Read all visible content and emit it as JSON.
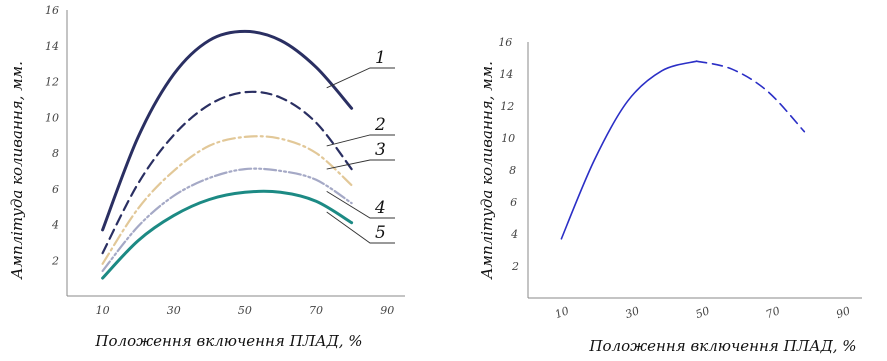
{
  "chart_data": [
    {
      "type": "line",
      "xlabel": "Положення включення ПЛАД, %",
      "ylabel": "Амплітуда коливання, мм.",
      "xlim": [
        0,
        95
      ],
      "ylim": [
        0,
        16
      ],
      "xticks": [
        "10",
        "30",
        "50",
        "70",
        "90"
      ],
      "yticks": [
        "2",
        "4",
        "6",
        "8",
        "10",
        "12",
        "14",
        "16"
      ],
      "grid": false,
      "series": [
        {
          "name": "1",
          "color": "#2a2f62",
          "dash": "solid",
          "x": [
            10,
            20,
            30,
            40,
            50,
            60,
            70,
            80
          ],
          "y": [
            3.7,
            8.9,
            12.4,
            14.3,
            14.8,
            14.3,
            12.8,
            10.5
          ]
        },
        {
          "name": "2",
          "color": "#2a2f62",
          "dash": "dashed",
          "x": [
            10,
            20,
            30,
            40,
            50,
            60,
            70,
            80
          ],
          "y": [
            2.4,
            6.3,
            9.0,
            10.7,
            11.4,
            11.1,
            9.7,
            7.1
          ]
        },
        {
          "name": "3",
          "color": "#e2c898",
          "dash": "dashdot",
          "x": [
            10,
            20,
            30,
            40,
            50,
            60,
            70,
            80
          ],
          "y": [
            1.8,
            4.9,
            7.0,
            8.4,
            8.9,
            8.8,
            8.0,
            6.2
          ]
        },
        {
          "name": "4",
          "color": "#a5a9c6",
          "dash": "dashdotdot",
          "x": [
            10,
            20,
            30,
            40,
            50,
            60,
            70,
            80
          ],
          "y": [
            1.4,
            3.9,
            5.6,
            6.6,
            7.1,
            7.0,
            6.5,
            5.2
          ]
        },
        {
          "name": "5",
          "color": "#1c8a84",
          "dash": "solid",
          "x": [
            10,
            20,
            30,
            40,
            50,
            60,
            70,
            80
          ],
          "y": [
            1.0,
            3.1,
            4.5,
            5.4,
            5.8,
            5.8,
            5.3,
            4.1
          ]
        }
      ]
    },
    {
      "type": "line",
      "xlabel": "Положення включення ПЛАД, %",
      "ylabel": "Амплітуда коливання, мм.",
      "xlim": [
        0,
        95
      ],
      "ylim": [
        0,
        16
      ],
      "xticks": [
        "10",
        "30",
        "50",
        "70",
        "90"
      ],
      "yticks": [
        "2",
        "4",
        "6",
        "8",
        "10",
        "12",
        "14",
        "16"
      ],
      "grid": false,
      "series": [
        {
          "name": "",
          "color": "#2b2fc6",
          "dash": "solid",
          "x": [
            10,
            20,
            30,
            40,
            50
          ],
          "y": [
            3.7,
            8.6,
            12.3,
            14.2,
            14.8
          ]
        },
        {
          "name": "",
          "color": "#2b2fc6",
          "dash": "dashed",
          "x": [
            50,
            60,
            70,
            80
          ],
          "y": [
            14.8,
            14.3,
            12.9,
            10.4
          ]
        }
      ]
    }
  ]
}
